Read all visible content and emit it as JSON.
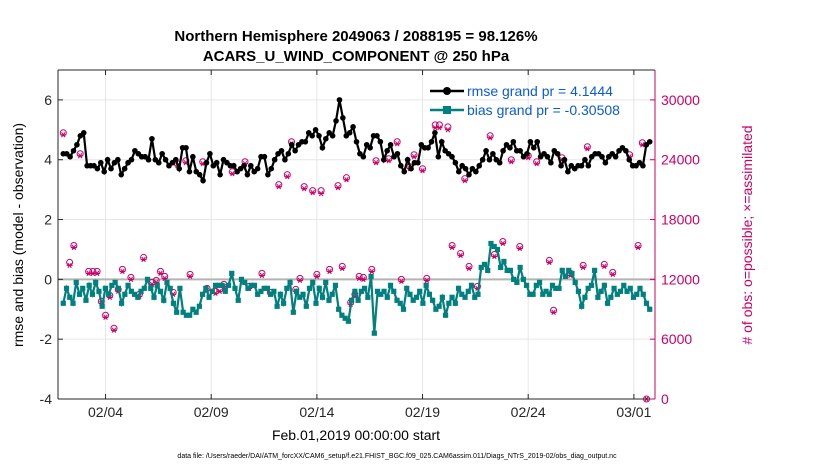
{
  "chart_data": {
    "type": "line",
    "title": "Northern Hemisphere 2049063 / 2088195 = 98.126%",
    "subtitle": "ACARS_U_WIND_COMPONENT @ 250 hPa",
    "xlabel": "Feb.01,2019 00:00:00 start",
    "ylabel_left": "rmse and bias (model - observation)",
    "ylabel_right": "# of obs: o=possible; ×=assimilated",
    "footer": "data file: /Users/raeder/DAI/ATM_forcXX/CAM6_setup/f.e21.FHIST_BGC.f09_025.CAM6assim.011/Diags_NTrS_2019-02/obs_diag_output.nc",
    "xlim": [
      0.75,
      29.0
    ],
    "ylim_left": [
      -4,
      7
    ],
    "ylim_right": [
      0,
      33000
    ],
    "x_ticks": [
      3,
      8,
      13,
      18,
      23,
      28
    ],
    "x_tick_labels": [
      "02/04",
      "02/09",
      "02/14",
      "02/19",
      "02/24",
      "03/01"
    ],
    "y_left_ticks": [
      -4,
      -2,
      0,
      2,
      4,
      6
    ],
    "y_left_tick_labels": [
      "-4",
      "-2",
      "0",
      "2",
      "4",
      "6"
    ],
    "y_right_ticks": [
      0,
      6000,
      12000,
      18000,
      24000,
      30000
    ],
    "y_right_tick_labels": [
      "0",
      "6000",
      "12000",
      "18000",
      "24000",
      "30000"
    ],
    "colors": {
      "rmse": "#000000",
      "bias": "#00807f",
      "counts": "#cc0066",
      "legend_text": "#0b5bd6",
      "zero_line": "#b3b3b3"
    },
    "legend_position": "top-right",
    "series": [
      {
        "name": "rmse grand pr = 4.1444",
        "values": [
          4.2,
          4.2,
          4.1,
          4.3,
          4.5,
          4.8,
          4.9,
          3.8,
          3.8,
          3.8,
          3.7,
          3.9,
          3.6,
          4.0,
          3.7,
          3.9,
          4.0,
          3.5,
          3.7,
          3.9,
          4.0,
          4.3,
          4.2,
          4.1,
          4.1,
          4.0,
          4.7,
          4.0,
          3.9,
          4.2,
          4.0,
          3.8,
          3.9,
          4.0,
          3.7,
          4.4,
          4.4,
          3.6,
          4.1,
          3.6,
          3.5,
          3.3,
          3.9,
          4.2,
          3.8,
          3.9,
          3.5,
          4.0,
          3.9,
          3.8,
          3.8,
          3.6,
          3.7,
          3.8,
          3.5,
          3.8,
          3.6,
          3.7,
          4.1,
          4.1,
          3.5,
          3.7,
          4.0,
          4.2,
          4.3,
          4.0,
          4.2,
          4.5,
          4.3,
          4.5,
          4.6,
          4.6,
          4.9,
          4.8,
          5.0,
          4.8,
          4.4,
          4.7,
          4.9,
          4.8,
          5.3,
          6.0,
          5.4,
          4.8,
          4.9,
          5.1,
          4.6,
          4.2,
          4.1,
          4.5,
          4.4,
          4.8,
          4.8,
          4.6,
          4.0,
          4.3,
          4.5,
          4.1,
          4.2,
          3.8,
          3.6,
          4.0,
          3.7,
          3.9,
          3.9,
          4.5,
          4.4,
          4.4,
          4.6,
          4.9,
          4.1,
          4.6,
          4.3,
          4.2,
          4.1,
          3.9,
          3.6,
          3.8,
          3.7,
          3.5,
          3.7,
          3.6,
          3.8,
          4.0,
          4.3,
          4.0,
          4.2,
          4.0,
          3.9,
          4.3,
          4.5,
          4.4,
          4.6,
          4.3,
          4.3,
          4.1,
          4.2,
          4.6,
          4.4,
          4.6,
          4.1,
          4.2,
          4.1,
          3.9,
          4.3,
          4.2,
          3.8,
          4.0,
          3.6,
          3.8,
          3.7,
          3.8,
          3.8,
          4.0,
          3.8,
          4.1,
          4.2,
          4.2,
          4.1,
          3.9,
          4.1,
          4.2,
          4.1,
          4.3,
          4.4,
          4.3,
          4.0,
          3.8,
          3.8,
          3.9,
          3.8,
          4.5,
          4.6
        ]
      },
      {
        "name": "bias grand pr = -0.30508",
        "values": [
          -0.8,
          -0.3,
          -0.6,
          -0.8,
          -0.1,
          -0.5,
          -0.3,
          -0.7,
          -0.2,
          -0.5,
          -0.1,
          -0.4,
          -0.9,
          -0.3,
          -0.5,
          -0.2,
          -0.1,
          -0.3,
          -0.8,
          -0.5,
          -0.2,
          -0.4,
          -0.5,
          -0.6,
          -0.4,
          -0.3,
          0.0,
          -0.3,
          -0.6,
          -0.2,
          -0.4,
          -0.7,
          -0.1,
          -0.3,
          -0.8,
          -1.1,
          -0.3,
          -1.1,
          -1.2,
          -1.2,
          -1.0,
          -1.1,
          -0.9,
          -0.5,
          -0.3,
          -0.6,
          -0.4,
          -0.2,
          -0.2,
          -0.2,
          -0.4,
          -0.2,
          0.2,
          -0.3,
          -0.7,
          0.0,
          -0.1,
          -0.3,
          -0.2,
          -0.2,
          -0.5,
          -0.4,
          -0.3,
          -0.3,
          -0.5,
          -0.4,
          -0.9,
          -0.5,
          -0.8,
          -0.3,
          -0.1,
          -1.1,
          -0.4,
          -0.6,
          -0.5,
          -0.9,
          -0.3,
          -0.1,
          -0.8,
          -0.3,
          -0.6,
          -0.1,
          -0.7,
          -0.5,
          -0.2,
          -1.0,
          -1.2,
          -1.3,
          -1.4,
          -0.7,
          -0.4,
          -0.7,
          -0.4,
          -0.3,
          -0.6,
          0.1,
          -1.8,
          -0.4,
          -0.5,
          -0.4,
          -0.6,
          -0.2,
          -0.4,
          -0.7,
          -0.8,
          -1.0,
          -0.3,
          -0.5,
          -0.7,
          -0.6,
          -0.4,
          -0.8,
          -0.2,
          -0.5,
          -0.7,
          -1.0,
          -0.9,
          -0.6,
          -1.2,
          -0.8,
          -0.6,
          -0.8,
          -0.3,
          -0.5,
          -0.6,
          -0.4,
          -0.2,
          -0.6,
          -0.5,
          0.4,
          0.5,
          0.3,
          1.2,
          1.1,
          1.0,
          0.4,
          0.6,
          0.3,
          0.3,
          0.0,
          -0.1,
          0.4,
          0.0,
          -0.2,
          -0.5,
          -0.5,
          -0.2,
          -0.1,
          -0.5,
          -0.4,
          -0.5,
          -0.2,
          -0.3,
          -0.3,
          0.3,
          0.1,
          0.3,
          0.2,
          -0.1,
          -0.4,
          -0.9,
          -0.6,
          -0.3,
          -0.2,
          0.3,
          -0.6,
          -0.4,
          -0.2,
          -0.8,
          -0.6,
          -0.3,
          -0.5,
          -0.4,
          -0.2,
          -0.4,
          -0.3,
          -0.6,
          -0.5,
          -0.3,
          -0.5,
          -0.8,
          -1.0
        ]
      }
    ],
    "counts_possible": [
      [
        1,
        26700
      ],
      [
        1.3,
        13700
      ],
      [
        1.5,
        15400
      ],
      [
        1.8,
        24600
      ],
      [
        2.2,
        12800
      ],
      [
        2.4,
        12800
      ],
      [
        2.6,
        12800
      ],
      [
        2.8,
        9800
      ],
      [
        3.0,
        8400
      ],
      [
        3.2,
        10400
      ],
      [
        3.4,
        7100
      ],
      [
        3.6,
        11000
      ],
      [
        3.8,
        13000
      ],
      [
        4.2,
        12200
      ],
      [
        4.6,
        10500
      ],
      [
        4.8,
        14200
      ],
      [
        5.2,
        11700
      ],
      [
        5.4,
        11900
      ],
      [
        5.6,
        12800
      ],
      [
        5.8,
        12300
      ],
      [
        6.2,
        10700
      ],
      [
        6.4,
        23600
      ],
      [
        6.8,
        23900
      ],
      [
        7.0,
        12500
      ],
      [
        7.6,
        23800
      ],
      [
        7.8,
        11100
      ],
      [
        8.2,
        10800
      ],
      [
        8.4,
        11000
      ],
      [
        8.6,
        11500
      ],
      [
        9.0,
        22800
      ],
      [
        9.6,
        23800
      ],
      [
        9.8,
        11300
      ],
      [
        10.4,
        12600
      ],
      [
        10.8,
        10700
      ],
      [
        11.2,
        21500
      ],
      [
        11.6,
        22500
      ],
      [
        11.8,
        25800
      ],
      [
        12.0,
        11000
      ],
      [
        12.2,
        12100
      ],
      [
        12.4,
        21300
      ],
      [
        12.8,
        20900
      ],
      [
        13.0,
        12500
      ],
      [
        13.2,
        20900
      ],
      [
        13.6,
        13000
      ],
      [
        14.0,
        21400
      ],
      [
        14.2,
        13300
      ],
      [
        14.4,
        22200
      ],
      [
        14.6,
        9700
      ],
      [
        14.8,
        10500
      ],
      [
        15.0,
        12300
      ],
      [
        15.2,
        12200
      ],
      [
        15.6,
        13000
      ],
      [
        15.8,
        23900
      ],
      [
        16.4,
        24100
      ],
      [
        16.8,
        25800
      ],
      [
        17.0,
        12000
      ],
      [
        17.4,
        23300
      ],
      [
        17.6,
        24500
      ],
      [
        18.0,
        23100
      ],
      [
        18.2,
        12100
      ],
      [
        18.6,
        27500
      ],
      [
        18.8,
        27500
      ],
      [
        19.2,
        27300
      ],
      [
        19.4,
        15400
      ],
      [
        19.8,
        14600
      ],
      [
        20.0,
        22100
      ],
      [
        20.2,
        13300
      ],
      [
        20.6,
        11300
      ],
      [
        21.2,
        26400
      ],
      [
        21.4,
        14500
      ],
      [
        21.8,
        15800
      ],
      [
        22.2,
        24000
      ],
      [
        22.6,
        15300
      ],
      [
        23.0,
        24400
      ],
      [
        23.4,
        23800
      ],
      [
        24.0,
        13900
      ],
      [
        24.2,
        8900
      ],
      [
        24.6,
        24200
      ],
      [
        25.0,
        12600
      ],
      [
        25.6,
        13400
      ],
      [
        25.8,
        25300
      ],
      [
        26.6,
        13500
      ],
      [
        27.0,
        12700
      ],
      [
        27.8,
        24500
      ],
      [
        28.2,
        15400
      ],
      [
        28.4,
        25700
      ],
      [
        28.6,
        0
      ]
    ],
    "counts_assimilated": [
      [
        1,
        26500
      ],
      [
        1.3,
        13400
      ],
      [
        1.5,
        15200
      ],
      [
        1.8,
        24400
      ],
      [
        2.2,
        12600
      ],
      [
        2.4,
        12600
      ],
      [
        2.6,
        12600
      ],
      [
        2.8,
        9600
      ],
      [
        3.0,
        8200
      ],
      [
        3.2,
        10200
      ],
      [
        3.4,
        6900
      ],
      [
        3.6,
        10800
      ],
      [
        3.8,
        12800
      ],
      [
        4.2,
        12000
      ],
      [
        4.6,
        10300
      ],
      [
        4.8,
        14000
      ],
      [
        5.2,
        11500
      ],
      [
        5.4,
        11700
      ],
      [
        5.6,
        12600
      ],
      [
        5.8,
        12100
      ],
      [
        6.2,
        10500
      ],
      [
        6.4,
        23400
      ],
      [
        6.8,
        23700
      ],
      [
        7.0,
        12300
      ],
      [
        7.6,
        23600
      ],
      [
        7.8,
        10900
      ],
      [
        8.2,
        10600
      ],
      [
        8.4,
        10800
      ],
      [
        8.6,
        11300
      ],
      [
        9.0,
        22600
      ],
      [
        9.6,
        23600
      ],
      [
        9.8,
        11100
      ],
      [
        10.4,
        12400
      ],
      [
        10.8,
        10500
      ],
      [
        11.2,
        21300
      ],
      [
        11.6,
        22300
      ],
      [
        11.8,
        25600
      ],
      [
        12.0,
        10800
      ],
      [
        12.2,
        11900
      ],
      [
        12.4,
        21100
      ],
      [
        12.8,
        20700
      ],
      [
        13.0,
        12300
      ],
      [
        13.2,
        20600
      ],
      [
        13.6,
        12800
      ],
      [
        14.0,
        21200
      ],
      [
        14.2,
        13100
      ],
      [
        14.4,
        22000
      ],
      [
        14.6,
        9500
      ],
      [
        14.8,
        10300
      ],
      [
        15.0,
        12100
      ],
      [
        15.2,
        12000
      ],
      [
        15.6,
        12800
      ],
      [
        15.8,
        23700
      ],
      [
        16.4,
        23900
      ],
      [
        16.8,
        25600
      ],
      [
        17.0,
        11800
      ],
      [
        17.4,
        23100
      ],
      [
        17.6,
        24300
      ],
      [
        18.0,
        22900
      ],
      [
        18.2,
        11900
      ],
      [
        18.6,
        27200
      ],
      [
        18.8,
        27200
      ],
      [
        19.2,
        27000
      ],
      [
        19.4,
        15200
      ],
      [
        19.8,
        14400
      ],
      [
        20.0,
        21900
      ],
      [
        20.2,
        13100
      ],
      [
        20.6,
        11100
      ],
      [
        21.2,
        26200
      ],
      [
        21.4,
        14300
      ],
      [
        21.8,
        15600
      ],
      [
        22.2,
        23800
      ],
      [
        22.6,
        15100
      ],
      [
        23.0,
        24200
      ],
      [
        23.4,
        23600
      ],
      [
        24.0,
        13700
      ],
      [
        24.2,
        8700
      ],
      [
        24.6,
        24000
      ],
      [
        25.0,
        12400
      ],
      [
        25.6,
        13200
      ],
      [
        25.8,
        25100
      ],
      [
        26.6,
        13300
      ],
      [
        27.0,
        12500
      ],
      [
        27.8,
        24300
      ],
      [
        28.2,
        15200
      ],
      [
        28.4,
        25500
      ],
      [
        28.6,
        0
      ]
    ]
  }
}
